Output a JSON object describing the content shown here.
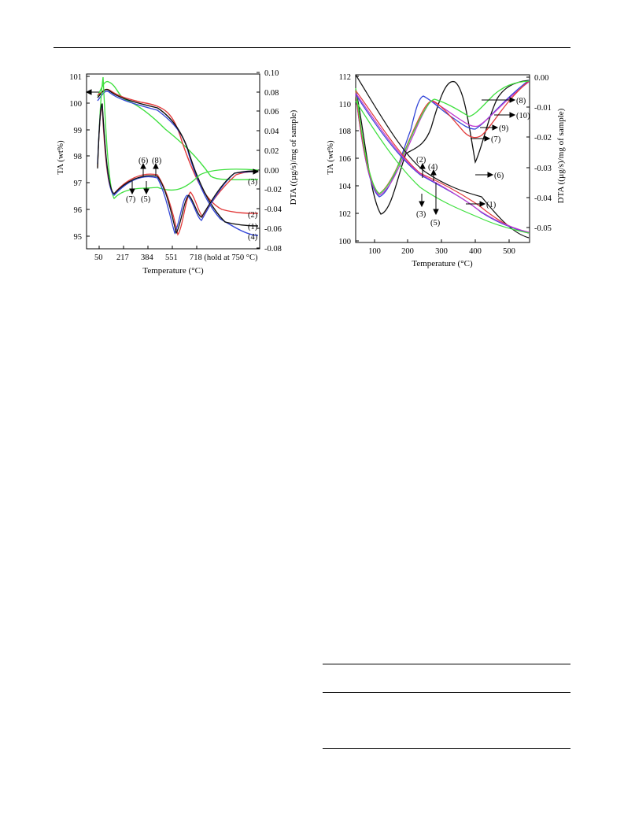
{
  "figure_left": {
    "left_axis_label": "TA (wt%)",
    "right_axis_label": "DTA ((µg/s)/mg of sample)",
    "x_axis_label": "Temperature (°C)",
    "x_ticks": [
      "50",
      "217",
      "384",
      "551",
      "718 (hold at 750 °C)"
    ],
    "left_ticks": [
      "101",
      "100",
      "99",
      "98",
      "97",
      "96",
      "95"
    ],
    "right_ticks": [
      "0.10",
      "0.08",
      "0.06",
      "0.04",
      "0.02",
      "0.00",
      "-0.02",
      "-0.04",
      "-0.06",
      "-0.08"
    ],
    "labels": [
      "(6)",
      "(8)",
      "(7)",
      "(5)",
      "(3)",
      "(2)",
      "(1)",
      "(4)"
    ]
  },
  "figure_right": {
    "left_axis_label": "TA (wt%)",
    "right_axis_label": "DTA ((µg/s)/mg of sample)",
    "x_axis_label": "Temperature (°C)",
    "x_ticks": [
      "100",
      "200",
      "300",
      "400",
      "500"
    ],
    "left_ticks": [
      "112",
      "110",
      "108",
      "106",
      "104",
      "102",
      "100"
    ],
    "right_ticks": [
      "0.00",
      "-0.01",
      "-0.02",
      "-0.03",
      "-0.04",
      "-0.05"
    ],
    "labels": [
      "(8)",
      "(10)",
      "(9)",
      "(7)",
      "(6)",
      "(2)",
      "(4)",
      "(1)",
      "(3)",
      "(5)"
    ]
  },
  "colors": {
    "black": "#111111",
    "red": "#e23b3b",
    "blue": "#3447d8",
    "green": "#3fe03f",
    "magenta": "#c03ad0"
  }
}
